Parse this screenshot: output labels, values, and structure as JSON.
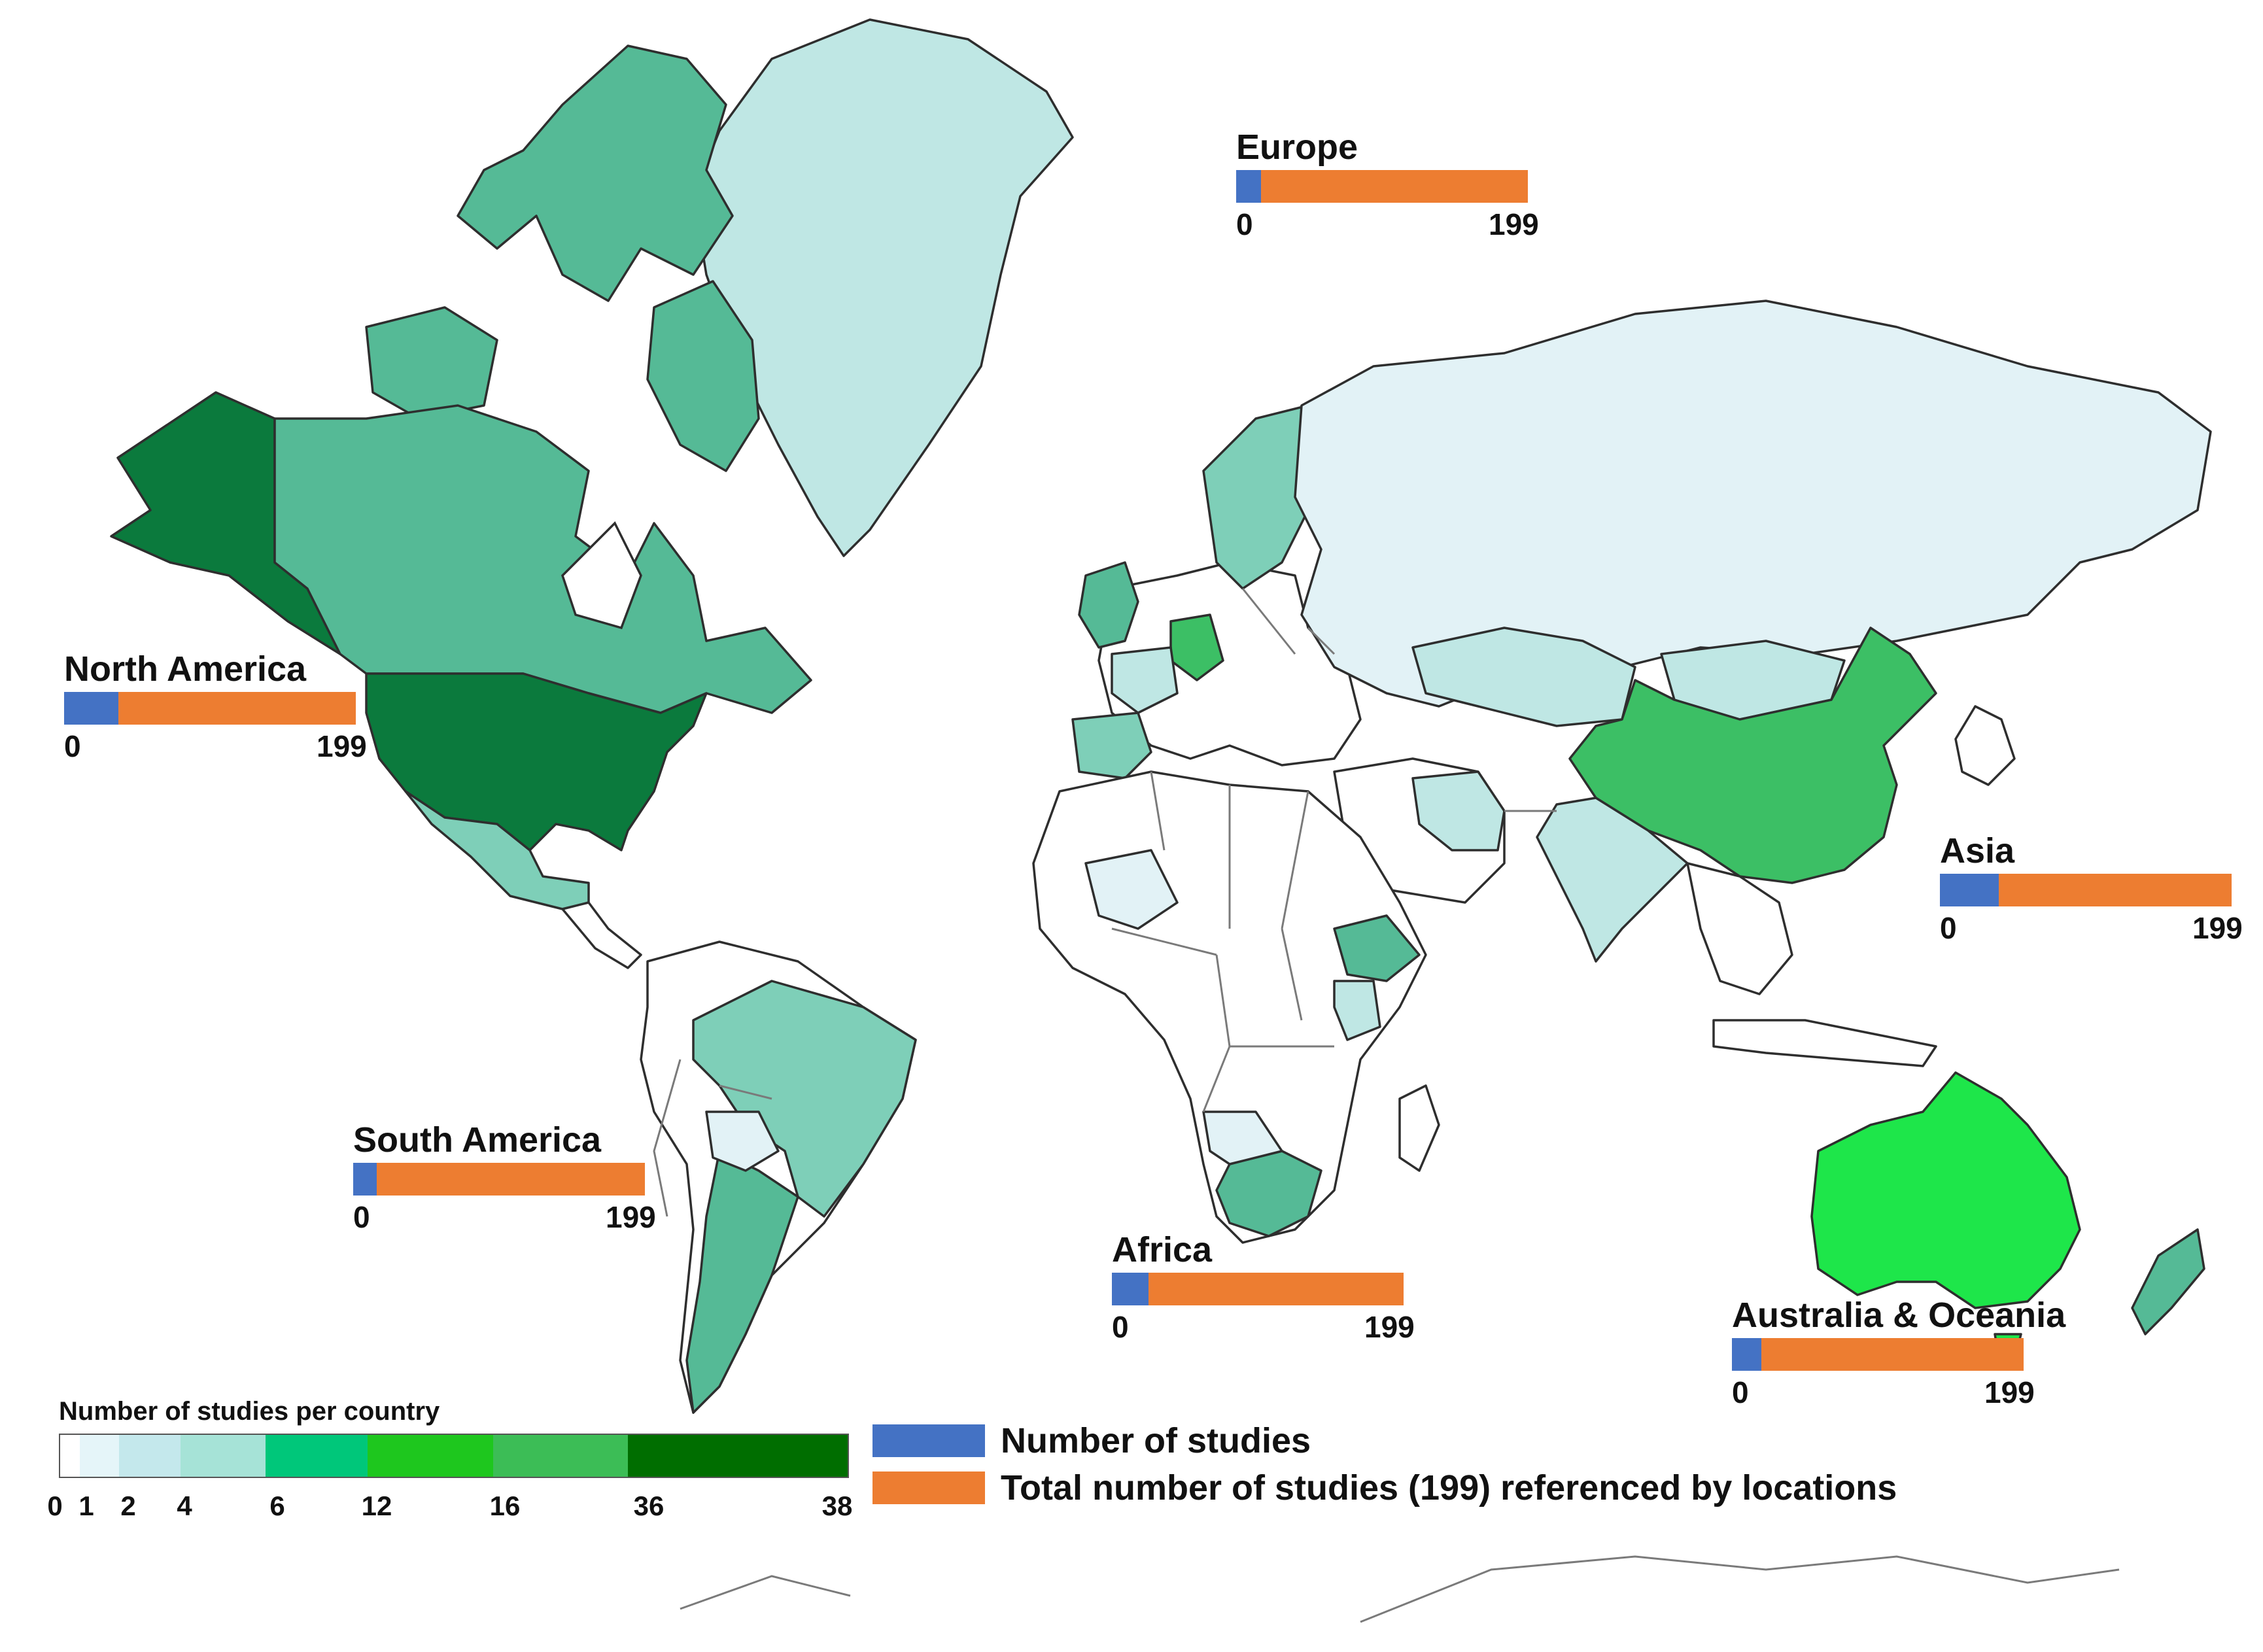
{
  "colors": {
    "blue": "#4472c4",
    "orange": "#ed7d31",
    "none": "#ffffff",
    "c1": "#e5f5f9",
    "c2": "#c4e8ec",
    "c3": "#a6e3d7",
    "c4": "#00c77a",
    "c5": "#1ec71e",
    "c6": "#3cbd56",
    "c7": "#006e00",
    "map_dark": "#0b7a3d",
    "map_mid": "#55ba96",
    "map_light": "#7ecfb8",
    "map_pale": "#bfe7e4",
    "map_pale2": "#e2f2f6",
    "map_china": "#3cbf65",
    "map_australia": "#1ee64a"
  },
  "regions": [
    {
      "name": "Europe",
      "studies": 17,
      "total": 199,
      "min_label": "0",
      "max_label": "199"
    },
    {
      "name": "North America",
      "studies": 37,
      "total": 199,
      "min_label": "0",
      "max_label": "199"
    },
    {
      "name": "Asia",
      "studies": 40,
      "total": 199,
      "min_label": "0",
      "max_label": "199"
    },
    {
      "name": "South America",
      "studies": 16,
      "total": 199,
      "min_label": "0",
      "max_label": "199"
    },
    {
      "name": "Africa",
      "studies": 25,
      "total": 199,
      "min_label": "0",
      "max_label": "199"
    },
    {
      "name": "Australia & Oceania",
      "studies": 20,
      "total": 199,
      "min_label": "0",
      "max_label": "199"
    }
  ],
  "scale": {
    "title": "Number of studies per country",
    "ticks": [
      "0",
      "1",
      "2",
      "4",
      "6",
      "12",
      "16",
      "36",
      "38"
    ]
  },
  "legend": {
    "blue_label": "Number of studies",
    "orange_label": "Total number of studies (199) referenced by locations"
  }
}
